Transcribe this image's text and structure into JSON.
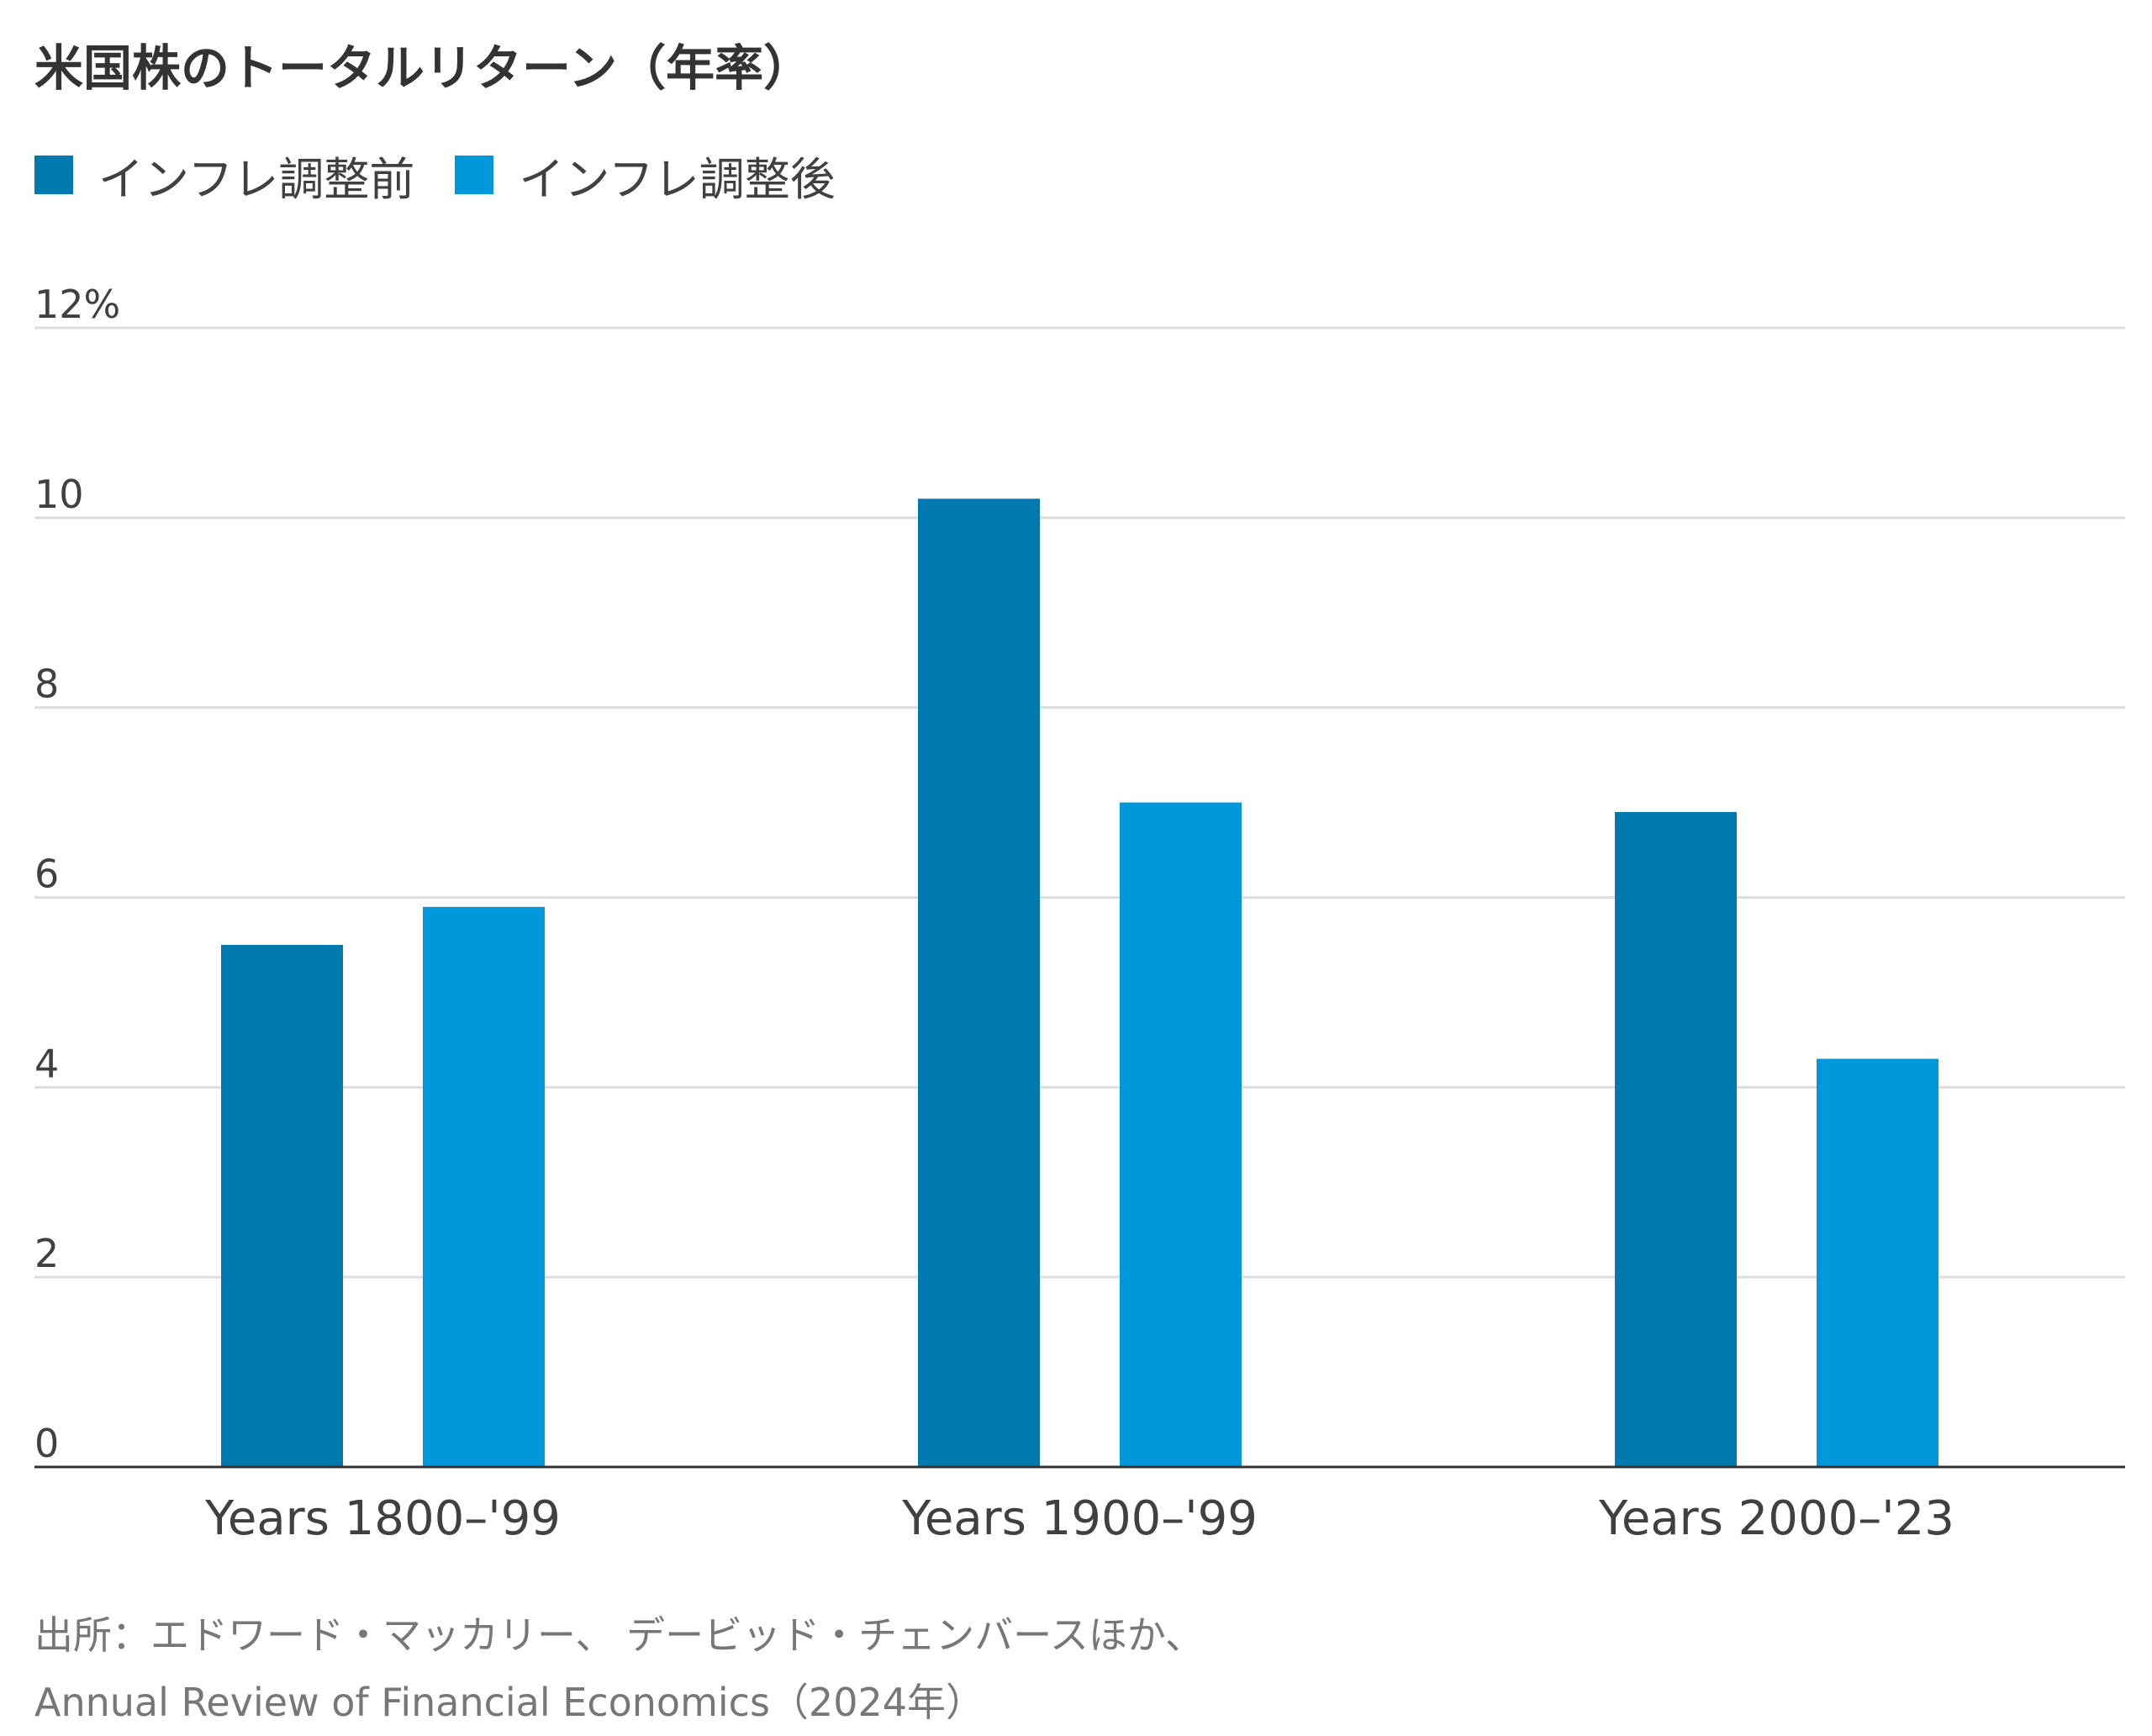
{
  "title": "米国株のトータルリターン（年率）",
  "colors": {
    "before": "#0079ae",
    "after": "#0098da",
    "grid": "#dddddd",
    "baseline": "#333333"
  },
  "legend": [
    {
      "label": "インフレ調整前",
      "color": "#0079ae"
    },
    {
      "label": "インフレ調整後",
      "color": "#0098da"
    }
  ],
  "chart_data": {
    "type": "bar",
    "categories": [
      "Years 1800–'99",
      "Years 1900–'99",
      "Years 2000–'23"
    ],
    "series": [
      {
        "name": "インフレ調整前",
        "values": [
          5.5,
          10.2,
          6.9
        ]
      },
      {
        "name": "インフレ調整後",
        "values": [
          5.9,
          7.0,
          4.3
        ]
      }
    ],
    "ylim": [
      0,
      12
    ],
    "yticks": [
      0,
      2,
      4,
      6,
      8,
      10,
      12
    ],
    "ytick_labels": [
      "0",
      "2",
      "4",
      "6",
      "8",
      "10",
      "12%"
    ],
    "grid": true,
    "legend_position": "top-left"
  },
  "source": {
    "line1": "出所：エドワード・マッカリー、 デービッド・チェンバースほか、",
    "line2": "Annual Review of Financial Economics（2024年）"
  }
}
